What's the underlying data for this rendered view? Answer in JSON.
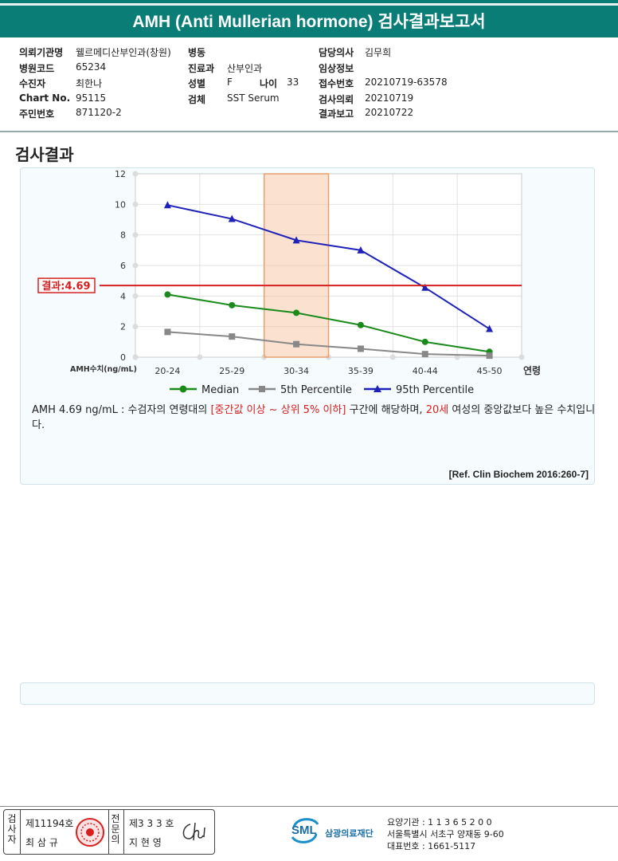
{
  "header": {
    "title": "AMH (Anti Mullerian hormone) 검사결과보고서"
  },
  "info": {
    "institution": {
      "label": "의뢰기관명",
      "value": "웰르메디산부인과(창원)"
    },
    "hospital_code": {
      "label": "병원코드",
      "value": "65234"
    },
    "patient": {
      "label": "수진자",
      "value": "최한나"
    },
    "chart_no": {
      "label": "Chart No.",
      "value": "95115"
    },
    "resident_no": {
      "label": "주민번호",
      "value": "871120-2"
    },
    "ward": {
      "label": "병동",
      "value": ""
    },
    "department": {
      "label": "진료과",
      "value": "산부인과"
    },
    "sex": {
      "label": "성별",
      "value": "F"
    },
    "age": {
      "label": "나이",
      "value": "33"
    },
    "specimen": {
      "label": "검체",
      "value": "SST Serum"
    },
    "doctor": {
      "label": "담당의사",
      "value": "김무희"
    },
    "clinical_info": {
      "label": "임상정보",
      "value": ""
    },
    "accession_no": {
      "label": "접수번호",
      "value": "20210719-63578"
    },
    "request_date": {
      "label": "검사의뢰",
      "value": "20210719"
    },
    "report_date": {
      "label": "결과보고",
      "value": "20210722"
    }
  },
  "section_title": "검사결과",
  "chart_data": {
    "type": "line",
    "categories": [
      "20-24",
      "25-29",
      "30-34",
      "35-39",
      "40-44",
      "45-50"
    ],
    "series": [
      {
        "name": "Median",
        "values": [
          4.1,
          3.4,
          2.9,
          2.1,
          1.0,
          0.35
        ],
        "color": "#1a8a1a",
        "marker": "circle"
      },
      {
        "name": "5th Percentile",
        "values": [
          1.65,
          1.35,
          0.85,
          0.55,
          0.2,
          0.1
        ],
        "color": "#888888",
        "marker": "square"
      },
      {
        "name": "95th Percentile",
        "values": [
          9.95,
          9.05,
          7.65,
          7.0,
          4.55,
          1.85
        ],
        "color": "#1f22b8",
        "marker": "triangle"
      }
    ],
    "ylim": [
      0,
      12
    ],
    "yticks": [
      0,
      2,
      4,
      6,
      8,
      10,
      12
    ],
    "ylabel": "AMH수치(ng/mL)",
    "xlabel": "연령",
    "highlight_category": "30-34",
    "result_value": 4.69,
    "result_label": "결과:4.69",
    "result_color": "#d62020",
    "grid": true,
    "legend_position": "bottom"
  },
  "comment": {
    "part1": "AMH  4.69 ng/mL : 수검자의 연령대의 ",
    "range": "[중간값 이상 ~ 상위 5% 이하]",
    "part2": "  구간에 해당하며, ",
    "age": "20세",
    "part3": " 여성의 중앙값보다 높은 수치입니다."
  },
  "reference": "[Ref. Clin Biochem 2016:260-7]",
  "footer": {
    "examiner_role": "검사자",
    "examiner_license": "제11194호",
    "examiner_name": "최 삼 규",
    "specialist_role": "전문의",
    "specialist_license": "제3 3 3 호",
    "specialist_name": "지 현 영",
    "org_abbr": "SML",
    "org_name": "삼광의료재단",
    "care_institution": "요양기관 : 1 1 3 6 5 2 0 0",
    "address": "서울특별시 서초구 양재동 9-60",
    "phone": "대표번호 : 1661-5117"
  }
}
